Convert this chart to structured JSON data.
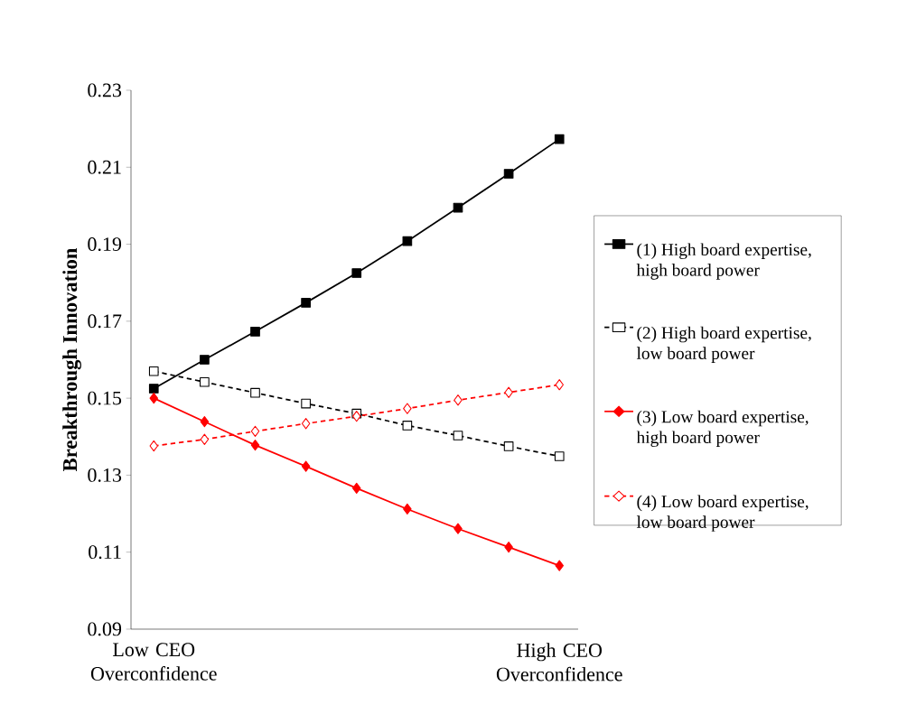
{
  "chart_data": {
    "type": "line",
    "ylabel": "Breakthrough Innovation",
    "categories": [
      "Low CEO Overconfidence",
      null,
      null,
      null,
      null,
      null,
      null,
      null,
      "High CEO Overconfidence"
    ],
    "ylim": [
      0.09,
      0.23
    ],
    "yticks": [
      0.09,
      0.11,
      0.13,
      0.15,
      0.17,
      0.19,
      0.21,
      0.23
    ],
    "grid": false,
    "legend": "right",
    "series": [
      {
        "name": "(1) High board expertise, high board power",
        "color": "#000000",
        "marker": "square",
        "line_style": "solid",
        "values": [
          0.1525,
          0.16,
          0.1673,
          0.1748,
          0.1825,
          0.1908,
          0.1995,
          0.2083,
          0.2173
        ]
      },
      {
        "name": "(2) High board expertise, low board power",
        "color": "#000000",
        "marker": "square",
        "line_style": "dashed",
        "values": [
          0.157,
          0.1542,
          0.1514,
          0.1486,
          0.146,
          0.1429,
          0.1403,
          0.1375,
          0.1349
        ]
      },
      {
        "name": "(3) Low board expertise, high board power",
        "color": "#ff0000",
        "marker": "diamond",
        "line_style": "solid",
        "values": [
          0.15,
          0.1439,
          0.1378,
          0.1323,
          0.1266,
          0.1212,
          0.1161,
          0.1113,
          0.1065
        ]
      },
      {
        "name": "(4) Low board expertise, low board power",
        "color": "#ff0000",
        "marker": "diamond",
        "line_style": "dashed",
        "values": [
          0.1376,
          0.1393,
          0.1414,
          0.1434,
          0.1453,
          0.1473,
          0.1495,
          0.1515,
          0.1535
        ]
      }
    ]
  }
}
